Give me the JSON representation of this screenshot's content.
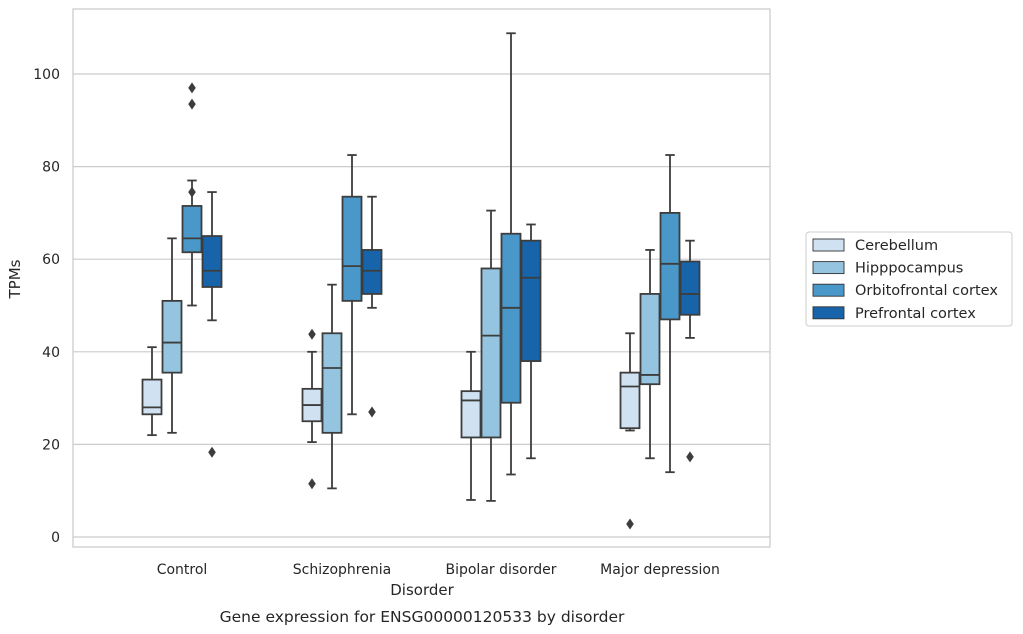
{
  "chart_data": {
    "type": "box",
    "caption": "Gene expression for ENSG00000120533 by disorder",
    "xlabel": "Disorder",
    "ylabel": "TPMs",
    "ylim": [
      -2,
      114
    ],
    "yticks": [
      0,
      20,
      40,
      60,
      80,
      100
    ],
    "grid": "horizontal",
    "legend_position": "right",
    "categories": [
      "Control",
      "Schizophrenia",
      "Bipolar disorder",
      "Major depression"
    ],
    "series": [
      {
        "name": "Cerebellum",
        "color": "#d0e1f2",
        "boxes": [
          {
            "whislo": 22,
            "q1": 26.5,
            "med": 28,
            "q3": 34,
            "whishi": 41,
            "fliers": []
          },
          {
            "whislo": 20.5,
            "q1": 25,
            "med": 28.5,
            "q3": 32,
            "whishi": 40,
            "fliers": [
              11.5,
              43.8
            ]
          },
          {
            "whislo": 8,
            "q1": 21.5,
            "med": 29.5,
            "q3": 31.5,
            "whishi": 40,
            "fliers": []
          },
          {
            "whislo": 23,
            "q1": 23.5,
            "med": 32.5,
            "q3": 35.5,
            "whishi": 44,
            "fliers": [
              2.8
            ]
          }
        ]
      },
      {
        "name": "Hipppocampus",
        "color": "#94c4df",
        "boxes": [
          {
            "whislo": 22.5,
            "q1": 35.5,
            "med": 42,
            "q3": 51,
            "whishi": 64.5,
            "fliers": []
          },
          {
            "whislo": 10.5,
            "q1": 22.5,
            "med": 36.5,
            "q3": 44,
            "whishi": 54.5,
            "fliers": []
          },
          {
            "whislo": 7.8,
            "q1": 21.5,
            "med": 43.5,
            "q3": 58,
            "whishi": 70.5,
            "fliers": []
          },
          {
            "whislo": 17,
            "q1": 33,
            "med": 35,
            "q3": 52.5,
            "whishi": 62,
            "fliers": []
          }
        ]
      },
      {
        "name": "Orbitofrontal cortex",
        "color": "#4a98c9",
        "boxes": [
          {
            "whislo": 50,
            "q1": 61.5,
            "med": 64.5,
            "q3": 71.5,
            "whishi": 77,
            "fliers": [
              74.5,
              93.5,
              97
            ]
          },
          {
            "whislo": 26.5,
            "q1": 51,
            "med": 58.5,
            "q3": 73.5,
            "whishi": 82.5,
            "fliers": []
          },
          {
            "whislo": 13.5,
            "q1": 29,
            "med": 49.5,
            "q3": 65.5,
            "whishi": 108.8,
            "fliers": []
          },
          {
            "whislo": 14,
            "q1": 47,
            "med": 59,
            "q3": 70,
            "whishi": 82.5,
            "fliers": []
          }
        ]
      },
      {
        "name": "Prefrontal cortex",
        "color": "#1764ab",
        "boxes": [
          {
            "whislo": 46.8,
            "q1": 54,
            "med": 57.5,
            "q3": 65,
            "whishi": 74.5,
            "fliers": [
              18.3
            ]
          },
          {
            "whislo": 49.5,
            "q1": 52.5,
            "med": 57.5,
            "q3": 62,
            "whishi": 73.5,
            "fliers": [
              27
            ]
          },
          {
            "whislo": 17,
            "q1": 38,
            "med": 56,
            "q3": 64,
            "whishi": 67.5,
            "fliers": []
          },
          {
            "whislo": 43,
            "q1": 48,
            "med": 52.5,
            "q3": 59.5,
            "whishi": 64,
            "fliers": [
              17.3
            ]
          }
        ]
      }
    ]
  }
}
